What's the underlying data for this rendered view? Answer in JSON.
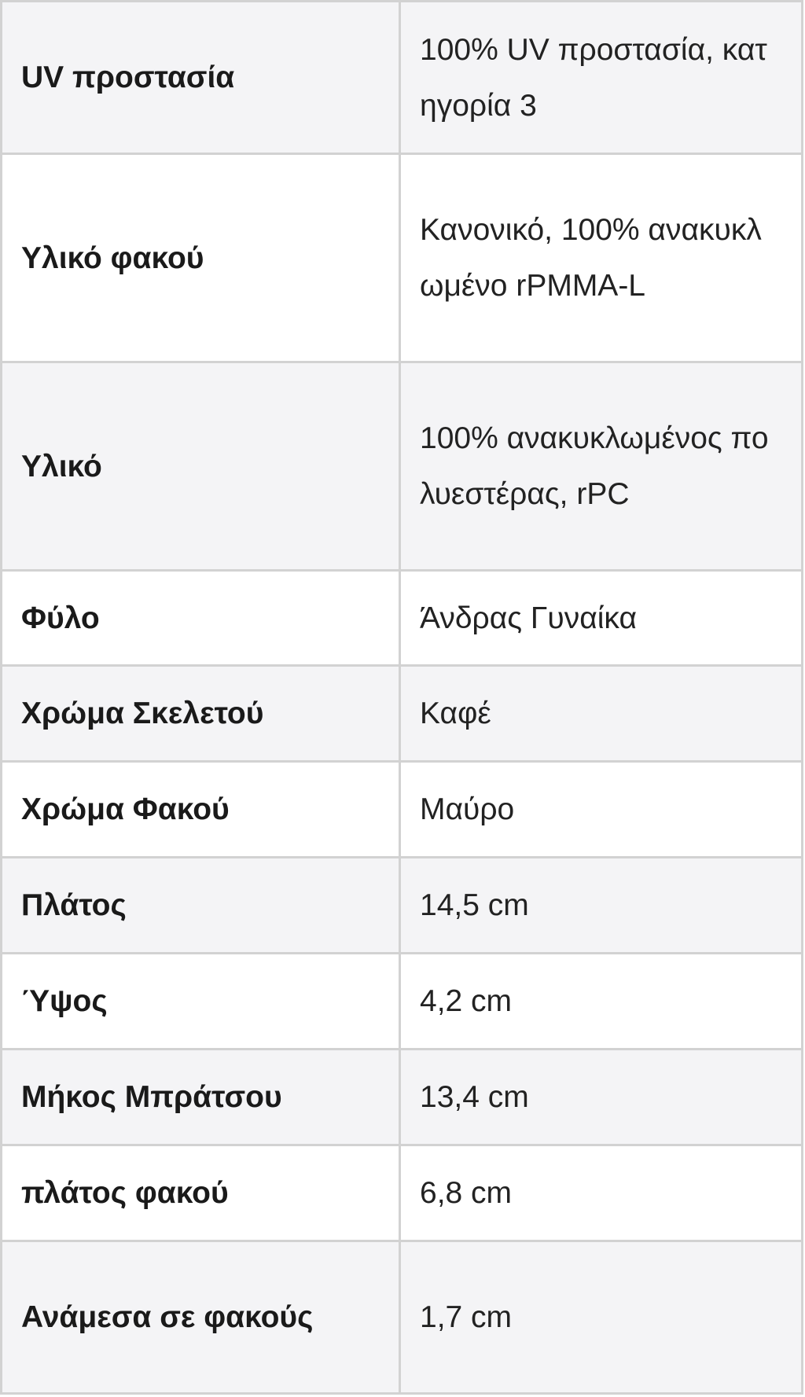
{
  "specs": [
    {
      "label": "UV προστασία",
      "value": "100% UV προστασία, κατηγορία 3"
    },
    {
      "label": "Υλικό φακού",
      "value": "Κανονικό, 100% ανακυκλωμένο rPMMA-L"
    },
    {
      "label": "Υλικό",
      "value": "100% ανακυκλωμένος πολυεστέρας, rPC"
    },
    {
      "label": "Φύλο",
      "value": "Άνδρας Γυναίκα"
    },
    {
      "label": "Χρώμα Σκελετού",
      "value": "Καφέ"
    },
    {
      "label": "Χρώμα Φακού",
      "value": "Μαύρο"
    },
    {
      "label": "Πλάτος",
      "value": "14,5 cm"
    },
    {
      "label": "Ύψος",
      "value": "4,2 cm"
    },
    {
      "label": "Μήκος Μπράτσου",
      "value": "13,4 cm"
    },
    {
      "label": "πλάτος φακού",
      "value": "6,8 cm"
    },
    {
      "label": "Ανάμεσα σε φακούς",
      "value": "1,7 cm"
    }
  ]
}
